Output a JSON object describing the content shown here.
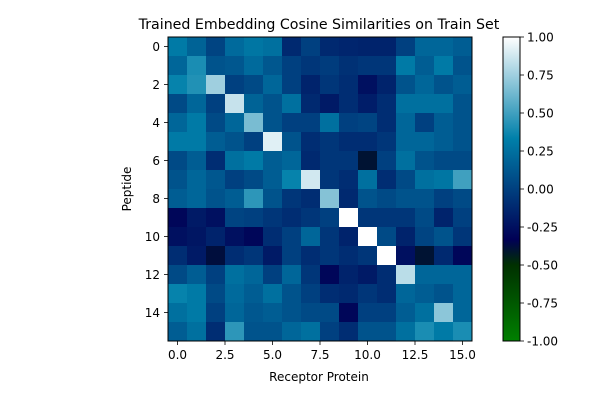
{
  "chart_data": {
    "type": "heatmap",
    "title": "Trained Embedding Cosine Similarities on Train Set",
    "xlabel": "Receptor Protein",
    "ylabel": "Peptide",
    "x_ticks": [
      "0.0",
      "2.5",
      "5.0",
      "7.5",
      "10.0",
      "12.5",
      "15.0"
    ],
    "x_tick_values": [
      0,
      2.5,
      5,
      7.5,
      10,
      12.5,
      15
    ],
    "y_ticks": [
      "0",
      "2",
      "4",
      "6",
      "8",
      "10",
      "12",
      "14"
    ],
    "y_tick_values": [
      0,
      2,
      4,
      6,
      8,
      10,
      12,
      14
    ],
    "xlim": [
      -0.5,
      15.5
    ],
    "ylim": [
      15.5,
      -0.5
    ],
    "colorbar": {
      "min": -1.0,
      "max": 1.0,
      "ticks": [
        "1.00",
        "0.75",
        "0.50",
        "0.25",
        "0.00",
        "-0.25",
        "-0.50",
        "-0.75",
        "-1.00"
      ],
      "tick_values": [
        1.0,
        0.75,
        0.5,
        0.25,
        0.0,
        -0.25,
        -0.5,
        -0.75,
        -1.0
      ],
      "colormap": "ocean",
      "stops": [
        {
          "v": -1.0,
          "color": "#008000"
        },
        {
          "v": -0.5,
          "color": "#003000"
        },
        {
          "v": -0.333,
          "color": "#000055"
        },
        {
          "v": 0.333,
          "color": "#0080aa"
        },
        {
          "v": 1.0,
          "color": "#ffffff"
        }
      ]
    },
    "values": [
      [
        0.3,
        0.18,
        0.02,
        0.22,
        0.28,
        0.25,
        -0.12,
        0.0,
        -0.12,
        -0.14,
        -0.15,
        -0.15,
        0.0,
        0.2,
        0.2,
        0.15
      ],
      [
        0.2,
        0.4,
        0.1,
        0.12,
        0.22,
        0.12,
        0.0,
        -0.05,
        -0.02,
        -0.08,
        -0.05,
        -0.05,
        0.3,
        0.15,
        0.3,
        0.1
      ],
      [
        0.35,
        0.42,
        0.75,
        0.0,
        0.05,
        0.2,
        0.0,
        -0.15,
        -0.05,
        -0.1,
        -0.25,
        -0.15,
        0.1,
        0.2,
        0.1,
        0.15
      ],
      [
        0.05,
        0.2,
        0.0,
        0.85,
        0.18,
        0.1,
        0.25,
        -0.12,
        -0.2,
        -0.1,
        -0.18,
        -0.1,
        0.25,
        0.25,
        0.25,
        0.1
      ],
      [
        0.2,
        0.3,
        0.05,
        0.2,
        0.65,
        0.1,
        0.0,
        0.0,
        0.25,
        0.0,
        0.02,
        -0.1,
        0.2,
        0.0,
        0.15,
        0.1
      ],
      [
        0.3,
        0.3,
        0.15,
        0.1,
        0.0,
        0.92,
        0.1,
        -0.1,
        -0.05,
        -0.1,
        -0.1,
        -0.05,
        0.2,
        0.2,
        0.15,
        0.1
      ],
      [
        0.05,
        0.15,
        -0.1,
        0.25,
        0.3,
        0.15,
        0.2,
        -0.12,
        -0.05,
        -0.05,
        -0.4,
        0.0,
        0.25,
        0.1,
        0.05,
        0.05
      ],
      [
        0.1,
        0.2,
        0.12,
        0.0,
        0.05,
        0.15,
        0.35,
        0.88,
        -0.05,
        -0.1,
        0.25,
        -0.1,
        0.05,
        0.25,
        0.28,
        0.5
      ],
      [
        0.15,
        0.2,
        0.1,
        0.15,
        0.45,
        0.1,
        -0.05,
        -0.1,
        0.68,
        -0.12,
        0.1,
        0.05,
        0.1,
        0.1,
        0.0,
        0.05
      ],
      [
        -0.3,
        -0.2,
        -0.25,
        0.02,
        0.0,
        -0.05,
        -0.1,
        -0.05,
        0.0,
        1.0,
        -0.05,
        -0.05,
        -0.05,
        0.05,
        -0.15,
        0.0
      ],
      [
        -0.25,
        -0.22,
        -0.15,
        -0.25,
        -0.3,
        -0.1,
        0.0,
        0.2,
        -0.05,
        -0.15,
        1.0,
        0.05,
        -0.15,
        0.02,
        0.1,
        -0.05
      ],
      [
        -0.1,
        -0.2,
        -0.38,
        -0.1,
        -0.05,
        -0.2,
        0.0,
        -0.1,
        -0.05,
        -0.1,
        -0.05,
        1.0,
        -0.25,
        -0.4,
        -0.12,
        -0.3
      ],
      [
        0.05,
        0.15,
        0.0,
        0.25,
        0.2,
        0.0,
        0.2,
        -0.05,
        -0.3,
        -0.15,
        -0.2,
        -0.1,
        0.82,
        0.2,
        0.2,
        0.2
      ],
      [
        0.35,
        0.3,
        0.05,
        0.22,
        0.15,
        0.25,
        0.1,
        0.0,
        -0.1,
        -0.12,
        -0.05,
        -0.1,
        0.2,
        0.15,
        0.1,
        0.2
      ],
      [
        0.25,
        0.3,
        0.0,
        0.2,
        0.12,
        0.15,
        0.1,
        0.05,
        0.05,
        -0.3,
        0.0,
        0.0,
        0.15,
        0.25,
        0.7,
        0.2
      ],
      [
        0.15,
        0.25,
        -0.1,
        0.45,
        0.1,
        0.1,
        0.2,
        0.25,
        0.0,
        -0.1,
        0.1,
        0.1,
        0.25,
        0.4,
        0.3,
        0.4
      ]
    ]
  }
}
